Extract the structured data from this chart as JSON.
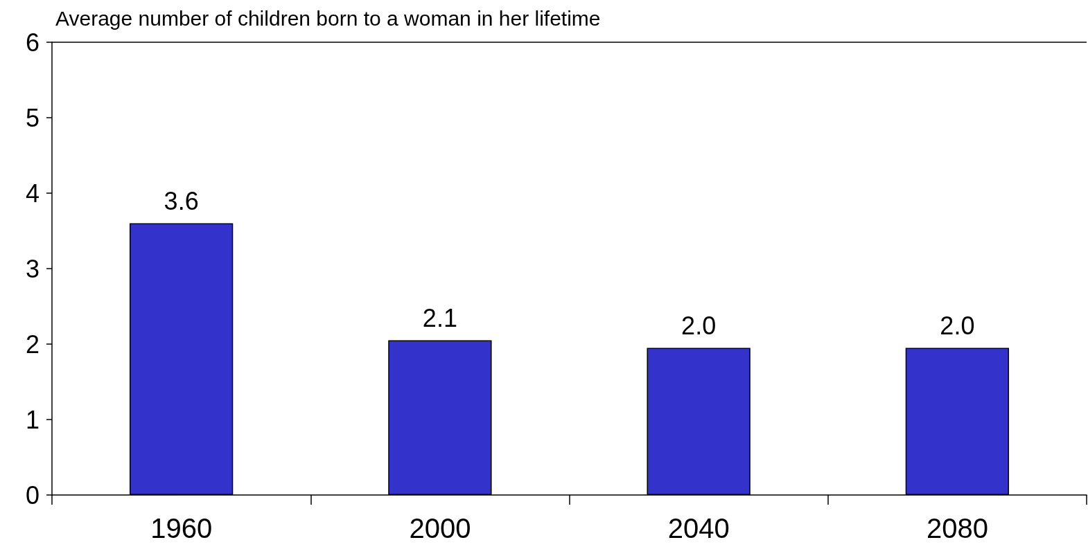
{
  "chart_data": {
    "type": "bar",
    "ylabel": "Average number of children born to a woman in her lifetime",
    "categories": [
      "1960",
      "2000",
      "2040",
      "2080"
    ],
    "values": [
      3.6,
      2.05,
      1.95,
      1.95
    ],
    "value_labels": [
      "3.6",
      "2.1",
      "2.0",
      "2.0"
    ],
    "color": "#3333cc",
    "ylim": [
      0,
      6
    ],
    "yticks": [
      0,
      1,
      2,
      3,
      4,
      5,
      6
    ],
    "grid": false
  }
}
